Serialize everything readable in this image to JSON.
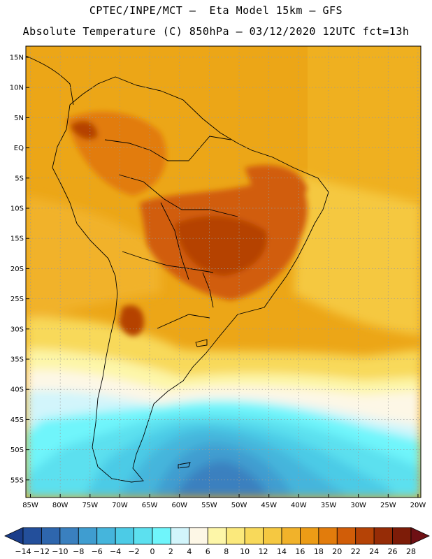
{
  "header": {
    "title_line1": "CPTEC/INPE/MCT –  Eta Model 15km – GFS",
    "title_line2": "Absolute Temperature (C) 850hPa – 03/12/2020 12UTC fct=13h"
  },
  "map": {
    "lat_labels": [
      "15N",
      "10N",
      "5N",
      "EQ",
      "5S",
      "10S",
      "15S",
      "20S",
      "25S",
      "30S",
      "35S",
      "40S",
      "45S",
      "50S",
      "55S"
    ],
    "lon_labels": [
      "85W",
      "80W",
      "75W",
      "70W",
      "65W",
      "60W",
      "55W",
      "50W",
      "45W",
      "40W",
      "35W",
      "30W",
      "25W",
      "20W"
    ]
  },
  "colorbar": {
    "labels": [
      "-14",
      "-12",
      "-10",
      "-8",
      "-6",
      "-4",
      "-2",
      "0",
      "2",
      "4",
      "6",
      "8",
      "10",
      "12",
      "14",
      "16",
      "18",
      "20",
      "22",
      "24",
      "26",
      "28"
    ],
    "colors": [
      "#1a3d8a",
      "#234f9b",
      "#2e66ad",
      "#3a80bf",
      "#3f9dd0",
      "#45b5dc",
      "#4ccbe6",
      "#5ce0ef",
      "#6ff5fb",
      "#d2f5fb",
      "#fdf7e6",
      "#fdf6a8",
      "#fbe97c",
      "#f8d95a",
      "#f5c841",
      "#f1b22a",
      "#ec9c16",
      "#e27c0c",
      "#d15d08",
      "#b54306",
      "#962c06",
      "#7d1c08",
      "#6e1014"
    ]
  }
}
